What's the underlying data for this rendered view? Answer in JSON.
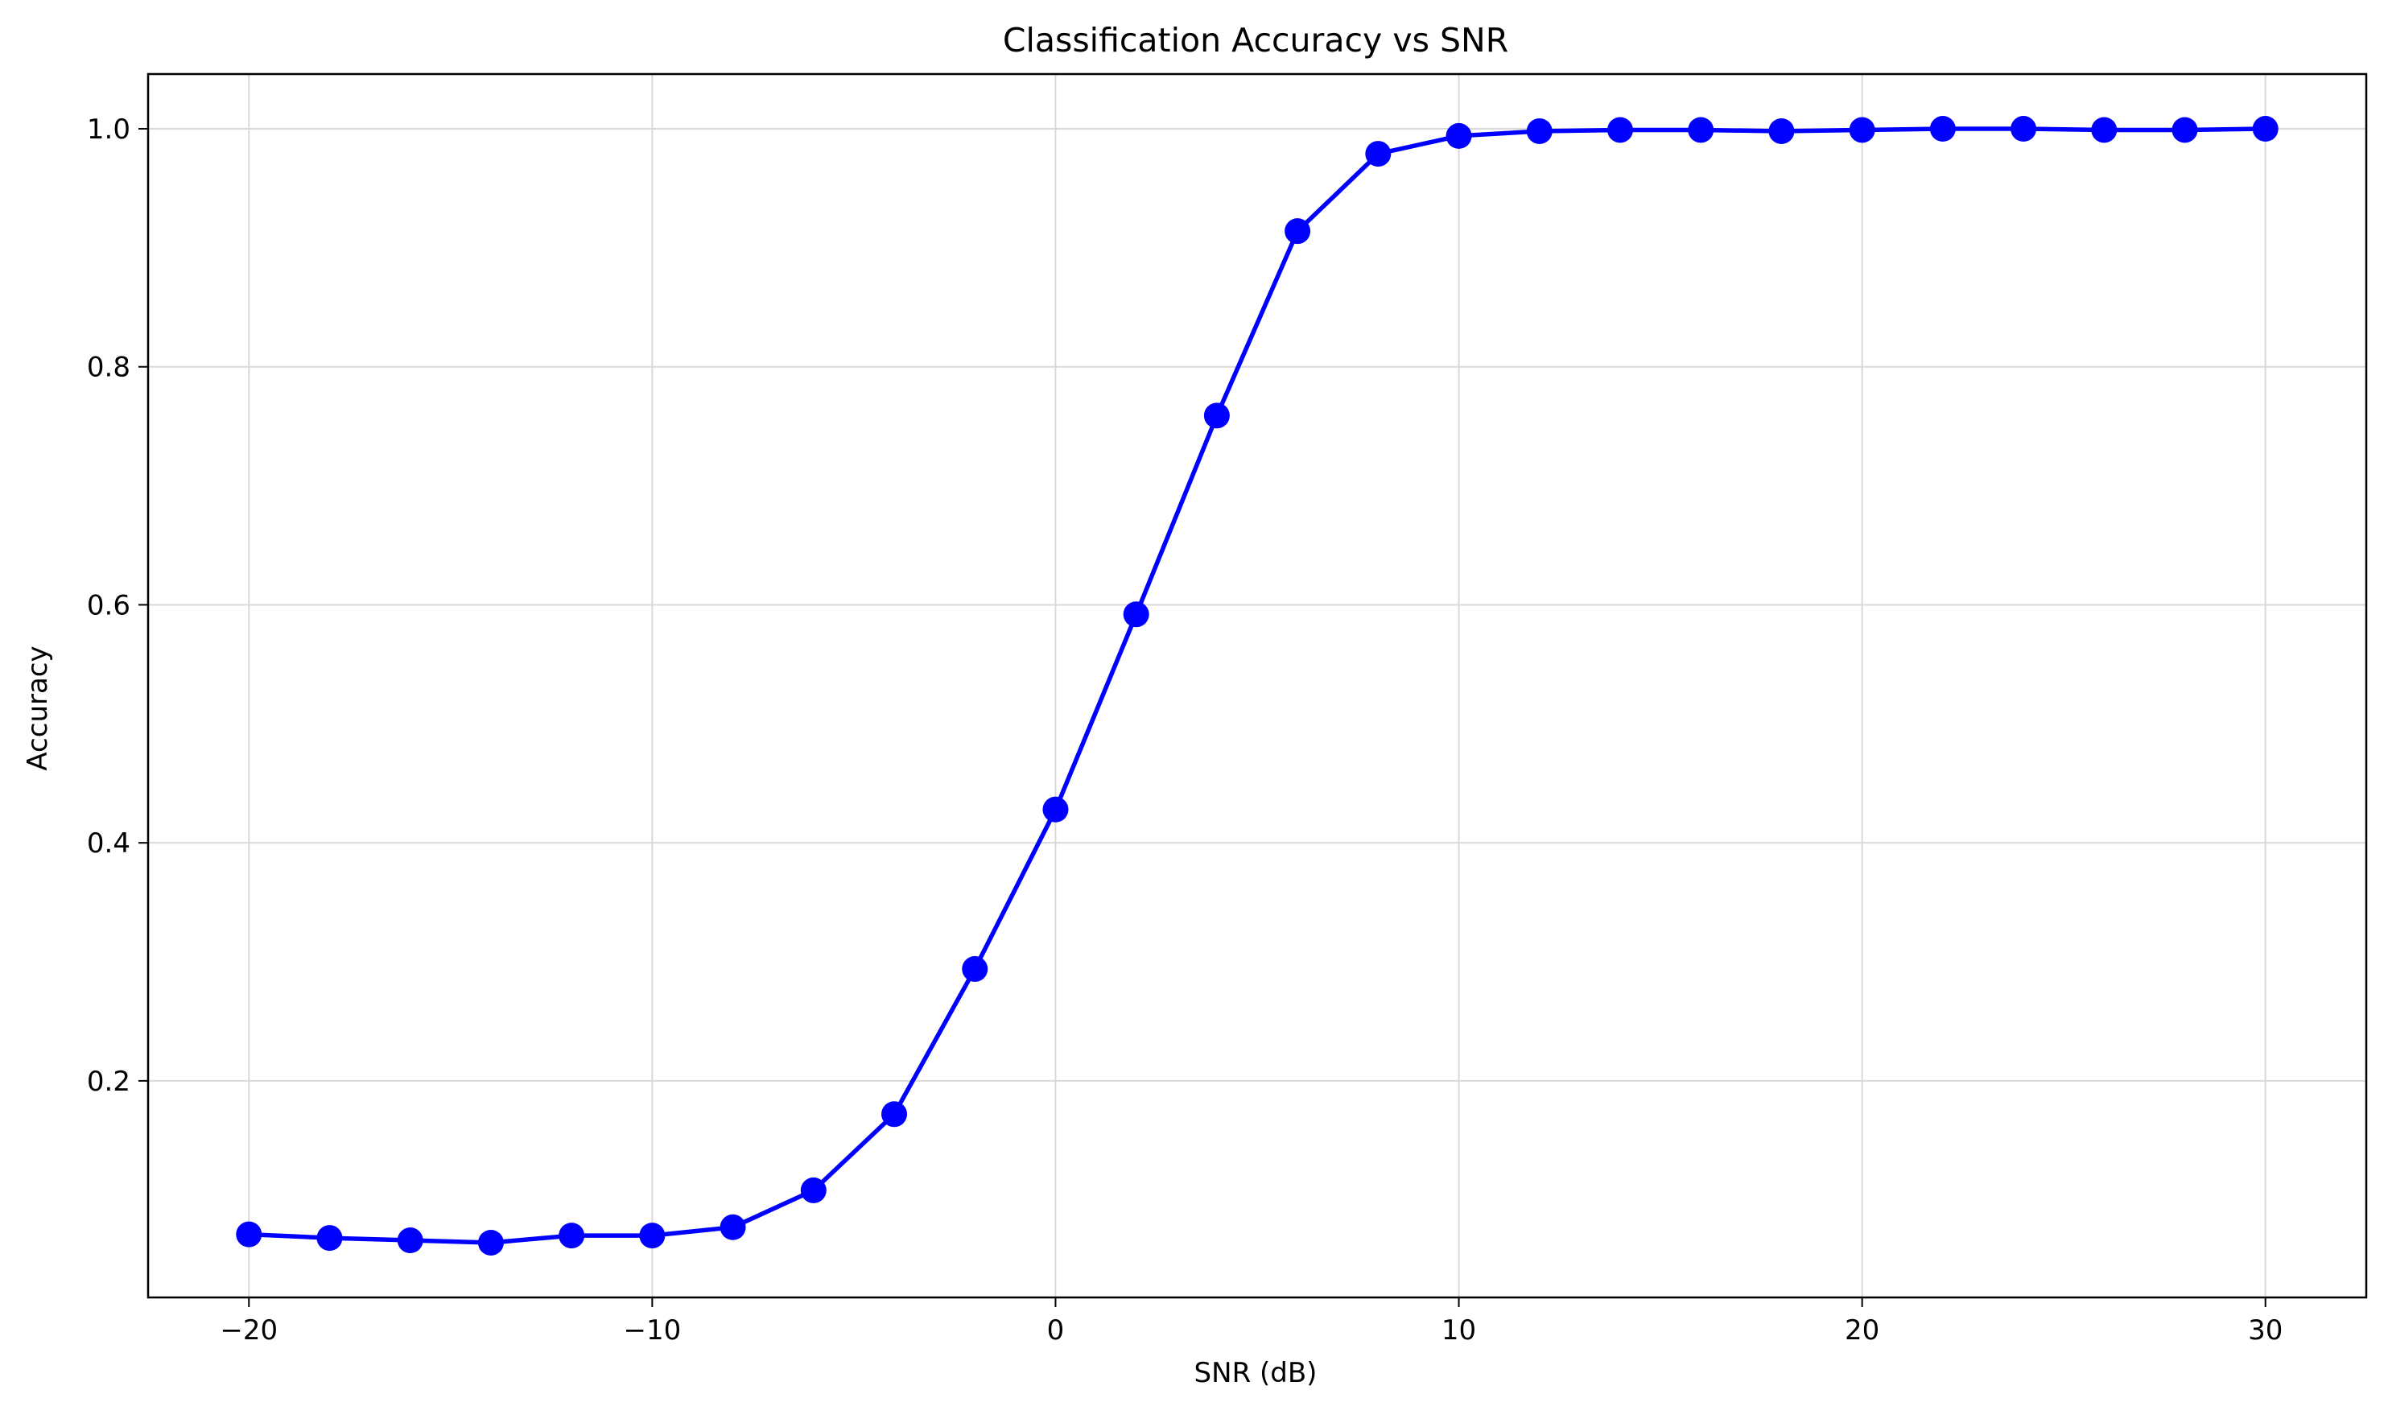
{
  "chart_data": {
    "type": "line",
    "title": "Classification Accuracy vs SNR",
    "xlabel": "SNR (dB)",
    "ylabel": "Accuracy",
    "xlim": [
      -22.5,
      32.5
    ],
    "ylim": [
      0.018,
      1.046
    ],
    "xticks": [
      -20,
      -10,
      0,
      10,
      20,
      30
    ],
    "xtick_labels": [
      "−20",
      "−10",
      "0",
      "10",
      "20",
      "30"
    ],
    "yticks": [
      0.2,
      0.4,
      0.6,
      0.8,
      1.0
    ],
    "ytick_labels": [
      "0.2",
      "0.4",
      "0.6",
      "0.8",
      "1.0"
    ],
    "grid": true,
    "legend": "none",
    "series": [
      {
        "color": "#0000ff",
        "marker": "circle",
        "x": [
          -20,
          -18,
          -16,
          -14,
          -12,
          -10,
          -8,
          -6,
          -4,
          -2,
          0,
          2,
          4,
          6,
          8,
          10,
          12,
          14,
          16,
          18,
          20,
          22,
          24,
          26,
          28,
          30
        ],
        "y": [
          0.071,
          0.068,
          0.066,
          0.064,
          0.07,
          0.07,
          0.077,
          0.108,
          0.172,
          0.294,
          0.428,
          0.592,
          0.759,
          0.914,
          0.979,
          0.994,
          0.998,
          0.999,
          0.999,
          0.998,
          0.999,
          1.0,
          1.0,
          0.999,
          0.999,
          1.0
        ]
      }
    ]
  }
}
